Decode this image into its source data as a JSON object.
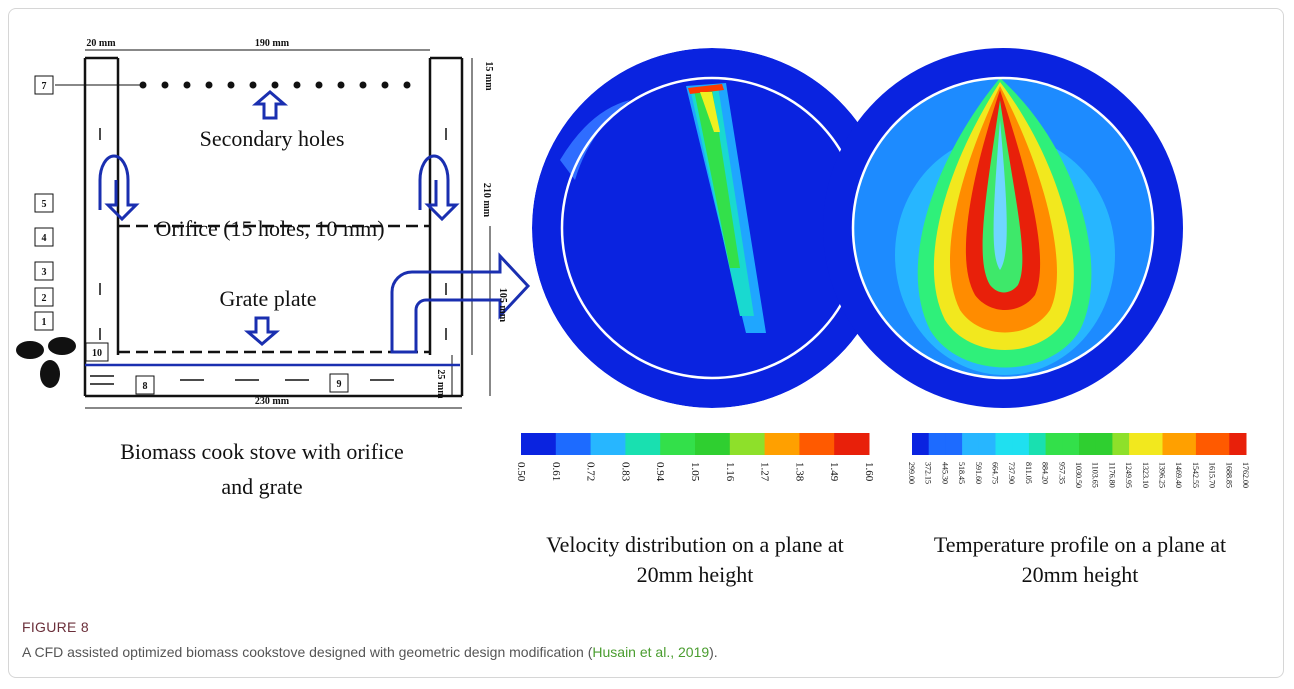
{
  "figure": {
    "stove": {
      "dimensions": [
        "20 mm",
        "190 mm",
        "15 mm",
        "210 mm",
        "105 mm",
        "25 mm",
        "230 mm"
      ],
      "part_labels": [
        "7",
        "5",
        "4",
        "3",
        "2",
        "1",
        "10",
        "8",
        "9"
      ],
      "annotations": [
        "Secondary holes",
        "Orifice (15 holes, 10 mm)",
        "Grate plate"
      ],
      "caption": [
        "Biomass  cook stove with orifice",
        "and grate"
      ]
    },
    "velocity": {
      "colorbar_labels": [
        "0.50",
        "0.61",
        "0.72",
        "0.83",
        "0.94",
        "1.05",
        "1.16",
        "1.27",
        "1.38",
        "1.49",
        "1.60"
      ],
      "caption": [
        "Velocity distribution on a plane at",
        "20mm height"
      ]
    },
    "temperature": {
      "colorbar_labels": [
        "299.00",
        "372.15",
        "445.30",
        "518.45",
        "591.60",
        "664.75",
        "737.90",
        "811.05",
        "884.20",
        "957.35",
        "1030.50",
        "1103.65",
        "1176.80",
        "1249.95",
        "1323.10",
        "1396.25",
        "1469.40",
        "1542.55",
        "1615.70",
        "1688.85",
        "1762.00"
      ],
      "caption": [
        "Temperature profile on a plane at",
        "20mm height"
      ]
    }
  },
  "caption": {
    "label": "FIGURE 8",
    "text_before": "A CFD assisted optimized biomass cookstove designed with geometric design modification (",
    "citation": "Husain et al., 2019",
    "text_after": ")."
  }
}
